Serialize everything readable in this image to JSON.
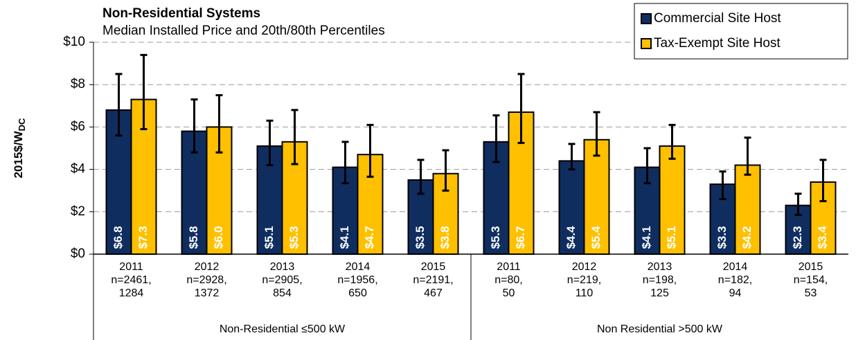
{
  "chart_data": {
    "type": "bar",
    "title": "Non-Residential Systems",
    "subtitle": "Median Installed Price and 20th/80th Percentiles",
    "ylabel": {
      "text": "2015$/W",
      "subscript": "DC"
    },
    "groups": [
      {
        "label": "Non-Residential  ≤500 kW",
        "categories": [
          [
            "2011",
            "n=2461,",
            "1284"
          ],
          [
            "2012",
            "n=2928,",
            "1372"
          ],
          [
            "2013",
            "n=2905,",
            "854"
          ],
          [
            "2014",
            "n=1956,",
            "650"
          ],
          [
            "2015",
            "n=2191,",
            "467"
          ]
        ]
      },
      {
        "label": "Non Residential >500 kW",
        "categories": [
          [
            "2011",
            "n=80,",
            "50"
          ],
          [
            "2012",
            "n=219,",
            "110"
          ],
          [
            "2013",
            "n=198,",
            "125"
          ],
          [
            "2014",
            "n=182,",
            "94"
          ],
          [
            "2015",
            "n=154,",
            "53"
          ]
        ]
      }
    ],
    "series": [
      {
        "name": "Commercial Site Host",
        "color": "#0f2d5f",
        "values": [
          6.8,
          5.8,
          5.1,
          4.1,
          3.5,
          5.3,
          4.4,
          4.1,
          3.3,
          2.3
        ],
        "value_labels": [
          "$6.8",
          "$5.8",
          "$5.1",
          "$4.1",
          "$3.5",
          "$5.3",
          "$4.4",
          "$4.1",
          "$3.3",
          "$2.3"
        ],
        "low": [
          5.6,
          4.8,
          4.2,
          3.35,
          2.85,
          4.35,
          4.0,
          3.35,
          2.6,
          1.85
        ],
        "high": [
          8.5,
          7.3,
          6.3,
          5.3,
          4.45,
          6.55,
          5.2,
          5.0,
          3.9,
          2.85
        ]
      },
      {
        "name": "Tax-Exempt Site Host",
        "color": "#ffc000",
        "values": [
          7.3,
          6.0,
          5.3,
          4.7,
          3.8,
          6.7,
          5.4,
          5.1,
          4.2,
          3.4
        ],
        "value_labels": [
          "$7.3",
          "$6.0",
          "$5.3",
          "$4.7",
          "$3.8",
          "$6.7",
          "$5.4",
          "$5.1",
          "$4.2",
          "$3.4"
        ],
        "low": [
          5.9,
          4.8,
          4.25,
          3.65,
          3.0,
          5.25,
          4.65,
          4.5,
          3.75,
          2.5
        ],
        "high": [
          9.4,
          7.5,
          6.8,
          6.1,
          4.9,
          8.5,
          6.7,
          6.1,
          5.5,
          4.45
        ]
      }
    ],
    "ylim": [
      0,
      10
    ],
    "yticks": [
      {
        "value": 0,
        "label": "$0"
      },
      {
        "value": 2,
        "label": "$2"
      },
      {
        "value": 4,
        "label": "$4"
      },
      {
        "value": 6,
        "label": "$6"
      },
      {
        "value": 8,
        "label": "$8"
      },
      {
        "value": 10,
        "label": "$10"
      }
    ],
    "grid": true,
    "legend": "top-right"
  }
}
